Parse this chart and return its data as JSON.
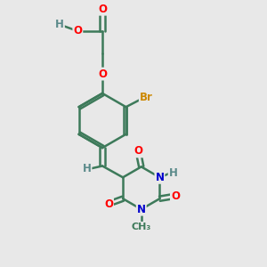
{
  "bg_color": "#e8e8e8",
  "bond_color": "#3d7a5a",
  "bond_width": 1.8,
  "atom_colors": {
    "O": "#ff0000",
    "N": "#0000cc",
    "Br": "#cc8800",
    "H": "#5a8a8a",
    "C": "#3d7a5a"
  },
  "font_size": 8.5,
  "fig_size": [
    3.0,
    3.0
  ],
  "dpi": 100
}
